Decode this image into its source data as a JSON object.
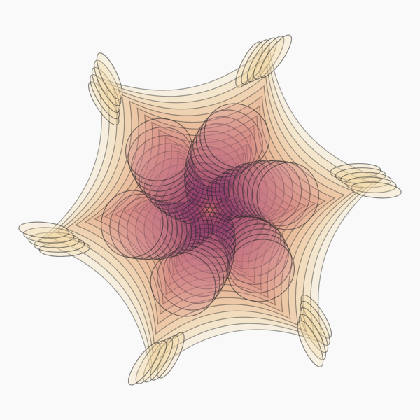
{
  "artwork": {
    "background": "#f9f9f9",
    "stroke_color": "#2a2a2a",
    "stroke_opacity": 0.45,
    "fill_opacity": 0.18,
    "arms": 6,
    "layers": 14,
    "palette": {
      "outer": "#f2d8a2",
      "mid": "#d88a8f",
      "inner": "#7a2a6e",
      "core": "#c9585e"
    }
  }
}
